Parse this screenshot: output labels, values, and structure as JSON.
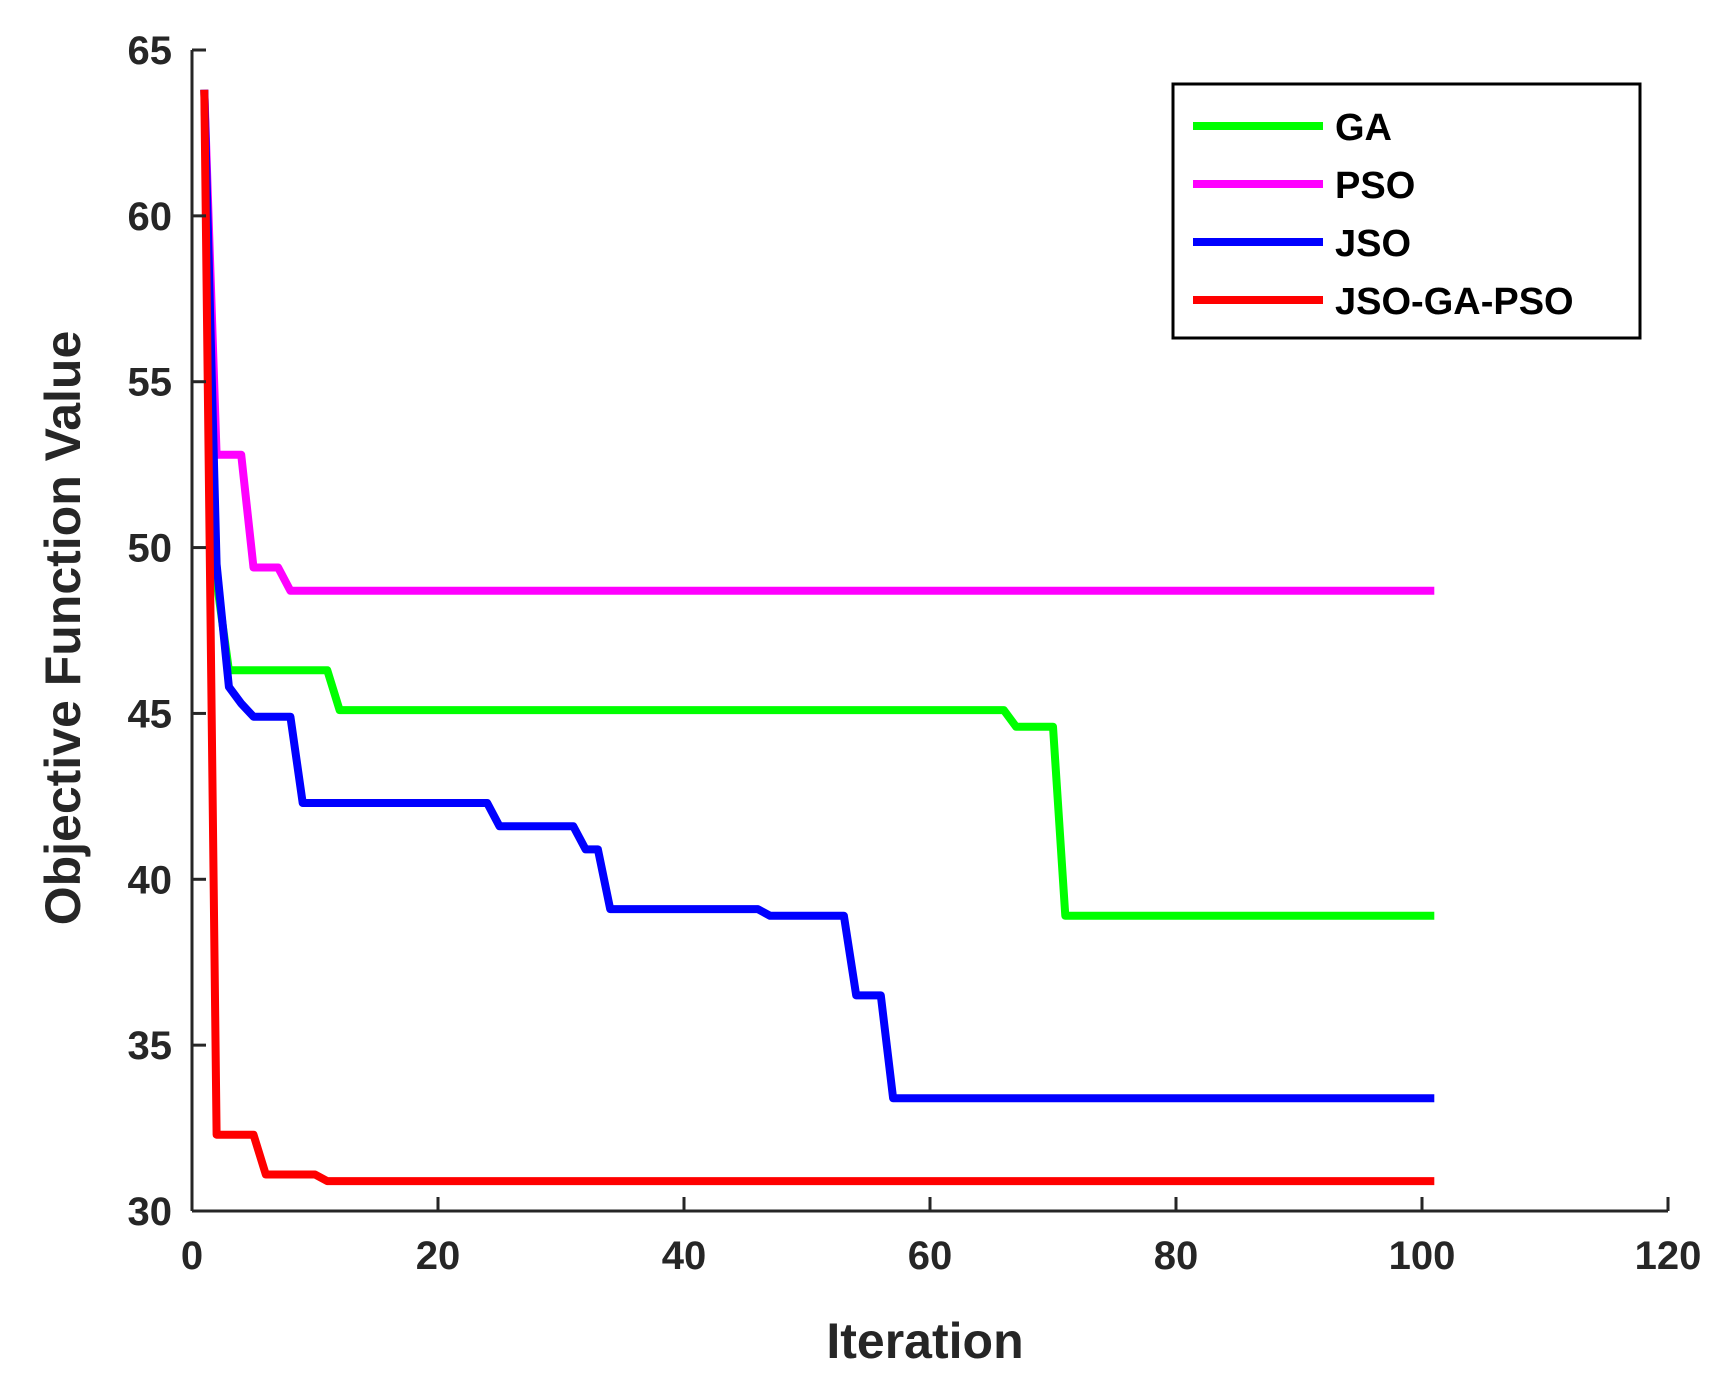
{
  "chart_data": {
    "type": "line",
    "title": "",
    "xlabel": "Iteration",
    "ylabel": "Objective Function Value",
    "xlim": [
      0,
      120
    ],
    "ylim": [
      30,
      65
    ],
    "xticks": [
      0,
      20,
      40,
      60,
      80,
      100,
      120
    ],
    "yticks": [
      30,
      35,
      40,
      45,
      50,
      55,
      60,
      65
    ],
    "grid": false,
    "legend_position": "top-right",
    "series": [
      {
        "name": "GA",
        "color": "#00ff00",
        "x": [
          1,
          2,
          3,
          11,
          12,
          66,
          67,
          70,
          71,
          101
        ],
        "y": [
          63.8,
          49.0,
          46.3,
          46.3,
          45.1,
          45.1,
          44.6,
          44.6,
          38.9,
          38.9
        ]
      },
      {
        "name": "PSO",
        "color": "#ff00ff",
        "x": [
          1,
          2,
          4,
          5,
          7,
          8,
          101
        ],
        "y": [
          63.8,
          52.8,
          52.8,
          49.4,
          49.4,
          48.7,
          48.7
        ]
      },
      {
        "name": "JSO",
        "color": "#0000ff",
        "x": [
          1,
          2,
          3,
          4,
          5,
          8,
          9,
          24,
          25,
          31,
          32,
          33,
          34,
          46,
          47,
          53,
          54,
          56,
          57,
          101
        ],
        "y": [
          63.8,
          49.5,
          45.8,
          45.3,
          44.9,
          44.9,
          42.3,
          42.3,
          41.6,
          41.6,
          40.9,
          40.9,
          39.1,
          39.1,
          38.9,
          38.9,
          36.5,
          36.5,
          33.4,
          33.4
        ]
      },
      {
        "name": "JSO-GA-PSO",
        "color": "#ff0000",
        "x": [
          1,
          2,
          5,
          6,
          10,
          11,
          101
        ],
        "y": [
          63.8,
          32.3,
          32.3,
          31.1,
          31.1,
          30.9,
          30.9
        ]
      }
    ]
  }
}
